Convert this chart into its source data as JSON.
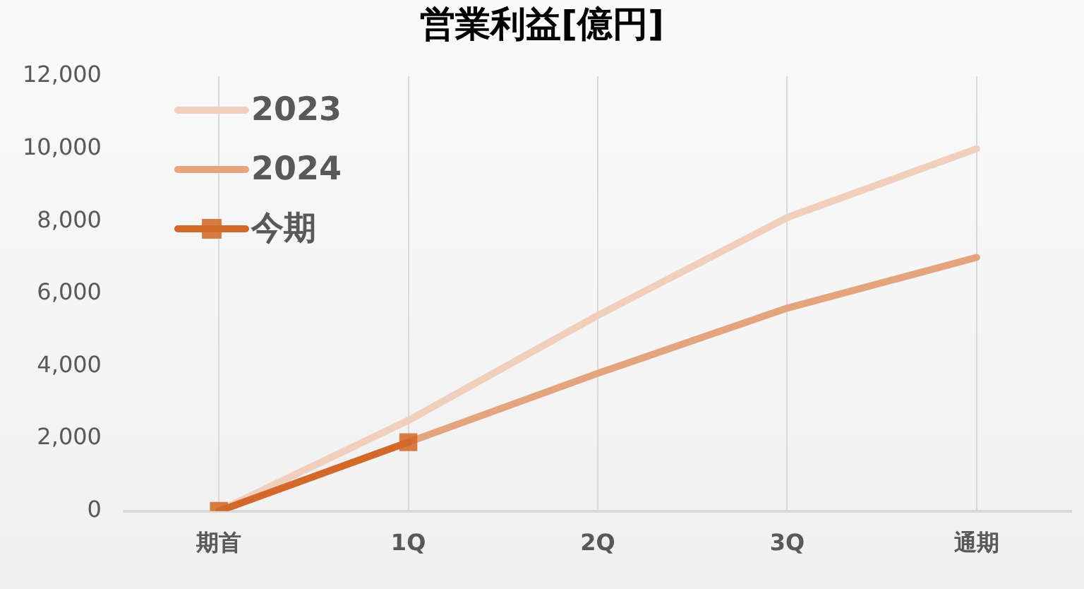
{
  "chart_data": {
    "type": "line",
    "title": "営業利益[億円]",
    "categories": [
      "期首",
      "1Q",
      "2Q",
      "3Q",
      "通期"
    ],
    "series": [
      {
        "name": "2023",
        "color": "#f0d0bc",
        "values": [
          0,
          2500,
          5400,
          8100,
          10000
        ],
        "marker": "none"
      },
      {
        "name": "2024",
        "color": "#e3a47e",
        "values": [
          0,
          1900,
          3800,
          5600,
          7000
        ],
        "marker": "none"
      },
      {
        "name": "今期",
        "color": "#d2692a",
        "values": [
          0,
          1900,
          null,
          null,
          null
        ],
        "marker": "square"
      }
    ],
    "ylim": [
      0,
      12000
    ],
    "yticks": [
      0,
      {
        "value": 2000,
        "label": "2,000"
      },
      {
        "value": 4000,
        "label": "4,000"
      },
      {
        "value": 6000,
        "label": "6,000"
      },
      {
        "value": 8000,
        "label": "8,000"
      },
      {
        "value": 10000,
        "label": "10,000"
      },
      {
        "value": 12000,
        "label": "12,000"
      }
    ],
    "grid": "x",
    "legend": "top left"
  }
}
